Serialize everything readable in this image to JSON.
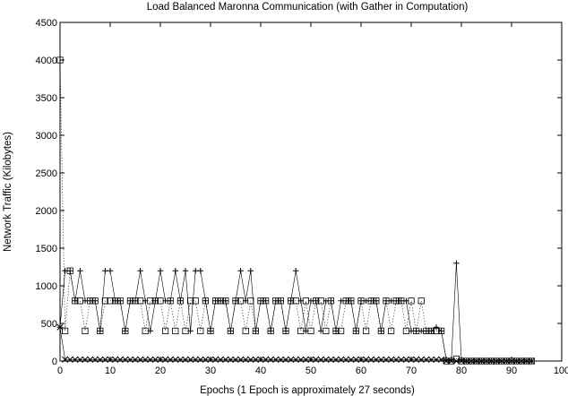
{
  "chart_data": {
    "type": "line",
    "title": "Load Balanced Maronna Communication (with Gather in Computation)",
    "xlabel": "Epochs (1 Epoch is approximately 27 seconds)",
    "ylabel": "Network Traffic (Kilobytes)",
    "xlim": [
      0,
      100
    ],
    "ylim": [
      0,
      4500
    ],
    "xticks": [
      0,
      10,
      20,
      30,
      40,
      50,
      60,
      70,
      80,
      90,
      100
    ],
    "yticks": [
      0,
      500,
      1000,
      1500,
      2000,
      2500,
      3000,
      3500,
      4000,
      4500
    ],
    "grid": false,
    "legend": "none",
    "series": [
      {
        "marker": "plus",
        "line": "solid",
        "x": [
          0,
          1,
          2,
          3,
          4,
          5,
          6,
          7,
          8,
          9,
          10,
          11,
          12,
          13,
          14,
          15,
          16,
          17,
          18,
          19,
          20,
          21,
          22,
          23,
          24,
          25,
          26,
          27,
          28,
          29,
          30,
          31,
          32,
          33,
          34,
          35,
          36,
          37,
          38,
          39,
          40,
          41,
          42,
          43,
          44,
          45,
          46,
          47,
          48,
          49,
          50,
          51,
          52,
          53,
          54,
          55,
          56,
          57,
          58,
          59,
          60,
          61,
          62,
          63,
          64,
          65,
          66,
          67,
          68,
          69,
          70,
          71,
          72,
          73,
          74,
          75,
          76,
          77,
          78,
          79,
          80,
          81,
          82,
          83,
          84,
          85,
          86,
          87,
          88,
          89,
          90,
          91,
          92,
          93,
          94
        ],
        "y": [
          450,
          1200,
          1200,
          800,
          1200,
          800,
          800,
          800,
          400,
          1200,
          1200,
          800,
          800,
          400,
          800,
          800,
          1200,
          800,
          400,
          800,
          1200,
          800,
          800,
          1200,
          800,
          1200,
          400,
          1200,
          1200,
          800,
          400,
          800,
          800,
          800,
          400,
          800,
          1200,
          800,
          1200,
          400,
          800,
          800,
          400,
          800,
          800,
          400,
          800,
          1200,
          800,
          400,
          800,
          800,
          400,
          800,
          800,
          400,
          800,
          800,
          800,
          400,
          800,
          800,
          800,
          800,
          400,
          800,
          800,
          800,
          800,
          800,
          400,
          400,
          400,
          400,
          400,
          450,
          400,
          20,
          20,
          1300,
          20,
          0,
          0,
          0,
          0,
          0,
          0,
          0,
          0,
          0,
          0,
          0,
          0,
          0,
          0
        ]
      },
      {
        "marker": "square",
        "line": "dotted",
        "x": [
          0,
          1,
          2,
          3,
          4,
          5,
          6,
          7,
          8,
          9,
          10,
          11,
          12,
          13,
          14,
          15,
          16,
          17,
          18,
          19,
          20,
          21,
          22,
          23,
          24,
          25,
          26,
          27,
          28,
          29,
          30,
          31,
          32,
          33,
          34,
          35,
          36,
          37,
          38,
          39,
          40,
          41,
          42,
          43,
          44,
          45,
          46,
          47,
          48,
          49,
          50,
          51,
          52,
          53,
          54,
          55,
          56,
          57,
          58,
          59,
          60,
          61,
          62,
          63,
          64,
          65,
          66,
          67,
          68,
          69,
          70,
          71,
          72,
          73,
          74,
          75,
          76,
          77,
          78,
          79,
          80,
          81,
          82,
          83,
          84,
          85,
          86,
          87,
          88,
          89,
          90,
          91,
          92,
          93,
          94
        ],
        "y": [
          4000,
          400,
          1200,
          800,
          800,
          400,
          800,
          800,
          400,
          800,
          800,
          800,
          800,
          400,
          800,
          800,
          800,
          400,
          800,
          800,
          800,
          400,
          800,
          400,
          800,
          400,
          800,
          800,
          400,
          800,
          400,
          800,
          800,
          800,
          400,
          800,
          800,
          400,
          800,
          400,
          800,
          800,
          400,
          800,
          800,
          400,
          800,
          800,
          400,
          800,
          400,
          800,
          800,
          400,
          800,
          400,
          400,
          800,
          800,
          400,
          800,
          400,
          800,
          800,
          400,
          800,
          400,
          800,
          800,
          400,
          800,
          400,
          800,
          400,
          400,
          400,
          400,
          0,
          0,
          30,
          0,
          0,
          0,
          0,
          0,
          0,
          0,
          0,
          0,
          0,
          0,
          0,
          0,
          0,
          0
        ]
      },
      {
        "marker": "cross",
        "line": "solid",
        "x": [
          0,
          1,
          2,
          3,
          4,
          5,
          6,
          7,
          8,
          9,
          10,
          11,
          12,
          13,
          14,
          15,
          16,
          17,
          18,
          19,
          20,
          21,
          22,
          23,
          24,
          25,
          26,
          27,
          28,
          29,
          30,
          31,
          32,
          33,
          34,
          35,
          36,
          37,
          38,
          39,
          40,
          41,
          42,
          43,
          44,
          45,
          46,
          47,
          48,
          49,
          50,
          51,
          52,
          53,
          54,
          55,
          56,
          57,
          58,
          59,
          60,
          61,
          62,
          63,
          64,
          65,
          66,
          67,
          68,
          69,
          70,
          71,
          72,
          73,
          74,
          75,
          76,
          77,
          78,
          79,
          80,
          81,
          82,
          83,
          84,
          85,
          86,
          87,
          88,
          89,
          90,
          91,
          92,
          93,
          94
        ],
        "y": [
          450,
          20,
          20,
          20,
          20,
          20,
          20,
          20,
          20,
          20,
          20,
          20,
          20,
          20,
          20,
          20,
          20,
          20,
          20,
          20,
          20,
          20,
          20,
          20,
          20,
          20,
          20,
          20,
          20,
          20,
          20,
          20,
          20,
          20,
          20,
          20,
          20,
          20,
          20,
          20,
          20,
          20,
          20,
          20,
          20,
          20,
          20,
          20,
          20,
          20,
          20,
          20,
          20,
          20,
          20,
          20,
          20,
          20,
          20,
          20,
          20,
          20,
          20,
          20,
          20,
          20,
          20,
          20,
          20,
          20,
          20,
          20,
          20,
          20,
          20,
          20,
          20,
          0,
          0,
          0,
          0,
          0,
          0,
          0,
          0,
          0,
          0,
          0,
          0,
          0,
          0,
          0,
          0,
          0,
          0
        ]
      }
    ]
  }
}
